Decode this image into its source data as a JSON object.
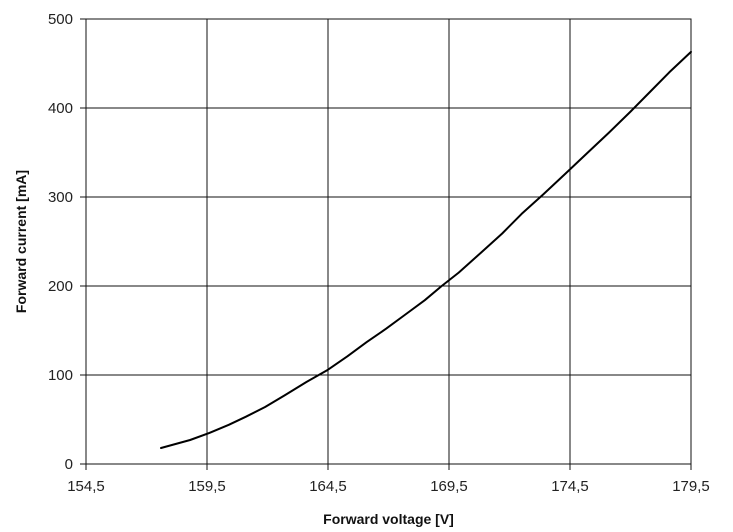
{
  "chart_data": {
    "type": "line",
    "title": "",
    "xlabel": "Forward voltage [V]",
    "ylabel": "Forward current [mA]",
    "xlim": [
      154.5,
      179.5
    ],
    "ylim": [
      0,
      500
    ],
    "x_ticks": [
      "154,5",
      "159,5",
      "164,5",
      "169,5",
      "174,5",
      "179,5"
    ],
    "x_tick_values": [
      154.5,
      159.5,
      164.5,
      169.5,
      174.5,
      179.5
    ],
    "y_ticks": [
      "0",
      "100",
      "200",
      "300",
      "400",
      "500"
    ],
    "y_tick_values": [
      0,
      100,
      200,
      300,
      400,
      500
    ],
    "grid": true,
    "legend": "none",
    "series": [
      {
        "x": [
          157.6,
          158.8,
          159.6,
          160.4,
          161.1,
          161.9,
          162.7,
          163.6,
          164.5,
          165.3,
          166.1,
          166.9,
          167.7,
          168.5,
          169.2,
          169.9,
          170.8,
          171.7,
          172.5,
          173.4,
          174.3,
          175.2,
          176.1,
          177.0,
          177.8,
          178.6,
          179.5
        ],
        "y": [
          18,
          27,
          35,
          44,
          53,
          64,
          77,
          92,
          106,
          121,
          137,
          152,
          168,
          184,
          200,
          215,
          237,
          259,
          281,
          303,
          326,
          349,
          372,
          396,
          418,
          440,
          463
        ]
      }
    ],
    "line_color": "#000000"
  }
}
